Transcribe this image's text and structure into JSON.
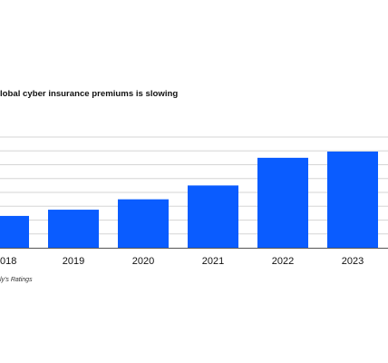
{
  "chart_data": {
    "type": "bar",
    "title": "lobal cyber insurance premiums is slowing",
    "categories": [
      "018",
      "2019",
      "2020",
      "2021",
      "2022",
      "2023"
    ],
    "series": [
      {
        "values": [
          4.6,
          5.5,
          7.0,
          9.0,
          13.0,
          13.9
        ]
      }
    ],
    "ylim": [
      0,
      16
    ],
    "grid": true,
    "legend": "none",
    "source": "ly's Ratings",
    "colors": {
      "bar": "#0a5cff",
      "grid": "#d6d6d6",
      "axis": "#555555",
      "text": "#111111"
    }
  }
}
